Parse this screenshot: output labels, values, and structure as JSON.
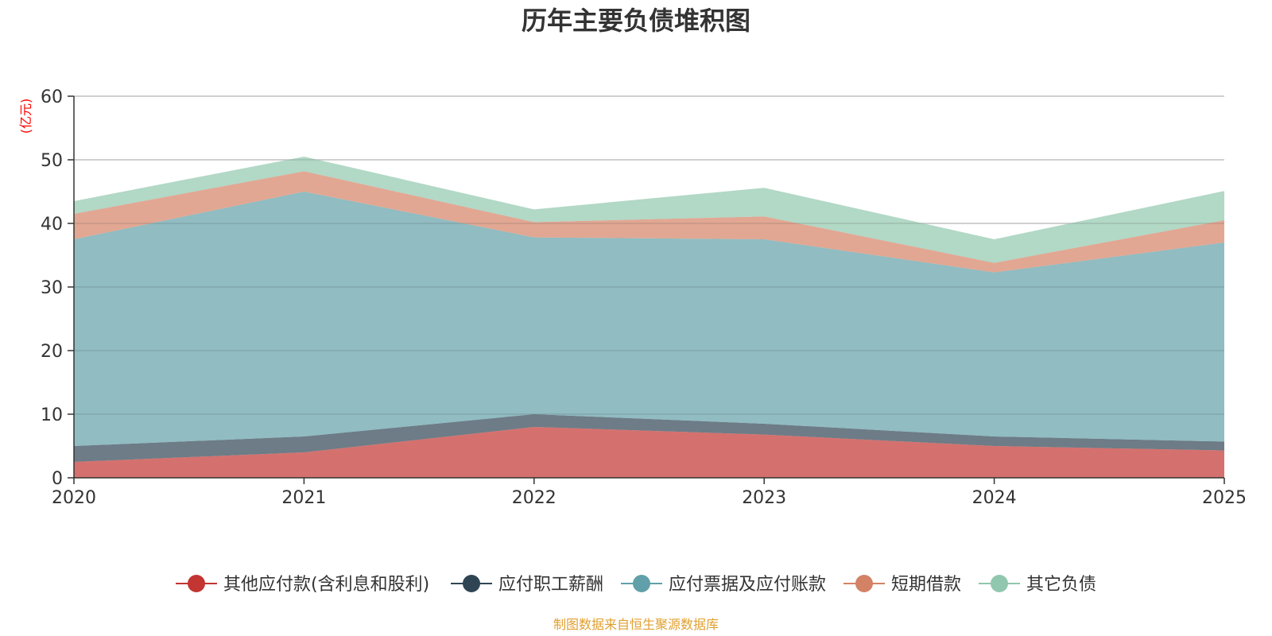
{
  "chart_data": {
    "type": "area",
    "stacked": true,
    "title": "历年主要负债堆积图",
    "ylabel": "(亿元)",
    "xlabel": "",
    "x": [
      "2020",
      "2021",
      "2022",
      "2023",
      "2024",
      "2025"
    ],
    "ylim": [
      0,
      60
    ],
    "yticks": [
      0,
      10,
      20,
      30,
      40,
      50,
      60
    ],
    "grid": true,
    "legend_position": "bottom",
    "series": [
      {
        "name": "其他应付款(含利息和股利)",
        "color": "#c23531",
        "values": [
          2.5,
          4.0,
          8.0,
          6.8,
          5.0,
          4.3
        ]
      },
      {
        "name": "应付职工薪酬",
        "color": "#2f4554",
        "values": [
          2.5,
          2.5,
          2.0,
          1.7,
          1.5,
          1.4
        ]
      },
      {
        "name": "应付票据及应付账款",
        "color": "#61a0a8",
        "values": [
          32.5,
          38.5,
          27.8,
          29.0,
          25.8,
          31.3
        ]
      },
      {
        "name": "短期借款",
        "color": "#d48265",
        "values": [
          4.0,
          3.2,
          2.4,
          3.6,
          1.5,
          3.5
        ]
      },
      {
        "name": "其它负债",
        "color": "#91c7ae",
        "values": [
          2.0,
          2.3,
          2.0,
          4.5,
          3.7,
          4.6
        ]
      }
    ]
  },
  "footer": {
    "source_text": "制图数据来自恒生聚源数据库"
  },
  "colors": {
    "title": "#333333",
    "unit": "#ff0000",
    "source": "#e0a030",
    "grid": "#cccccc",
    "axis": "#333333"
  }
}
